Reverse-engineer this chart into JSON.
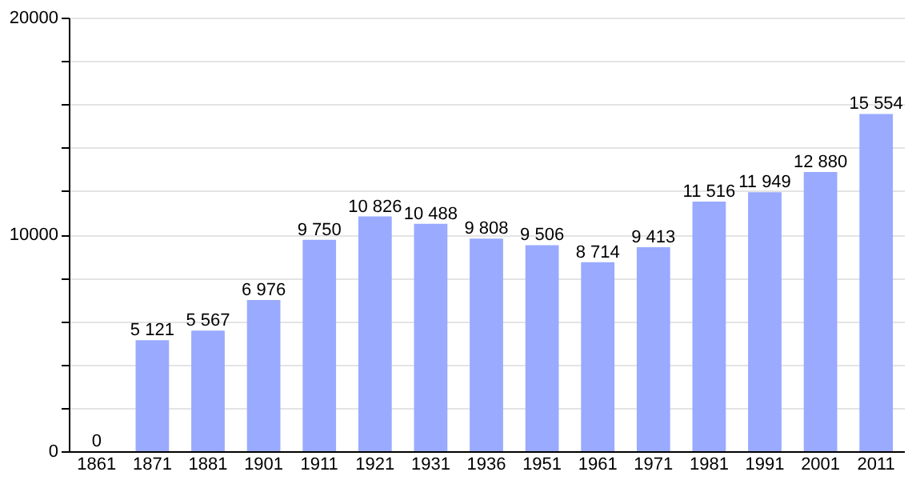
{
  "chart_data": {
    "type": "bar",
    "categories": [
      "1861",
      "1871",
      "1881",
      "1901",
      "1911",
      "1921",
      "1931",
      "1936",
      "1951",
      "1961",
      "1971",
      "1981",
      "1991",
      "2001",
      "2011"
    ],
    "values": [
      0,
      5121,
      5567,
      6976,
      9750,
      10826,
      10488,
      9808,
      9506,
      8714,
      9413,
      11516,
      11949,
      12880,
      15554
    ],
    "value_labels": [
      "0",
      "5 121",
      "5 567",
      "6 976",
      "9 750",
      "10 826",
      "10 488",
      "9 808",
      "9 506",
      "8 714",
      "9 413",
      "11 516",
      "11 949",
      "12 880",
      "15 554"
    ],
    "color": "#99aaff",
    "ylim": [
      0,
      20000
    ],
    "yticks": [
      0,
      {
        "value": 2000,
        "label": null
      },
      {
        "value": 4000,
        "label": null
      },
      {
        "value": 6000,
        "label": null
      },
      {
        "value": 8000,
        "label": null
      },
      10000,
      {
        "value": 12000,
        "label": null
      },
      {
        "value": 14000,
        "label": null
      },
      {
        "value": 16000,
        "label": null
      },
      {
        "value": 18000,
        "label": null
      },
      20000
    ],
    "grid": "y"
  }
}
